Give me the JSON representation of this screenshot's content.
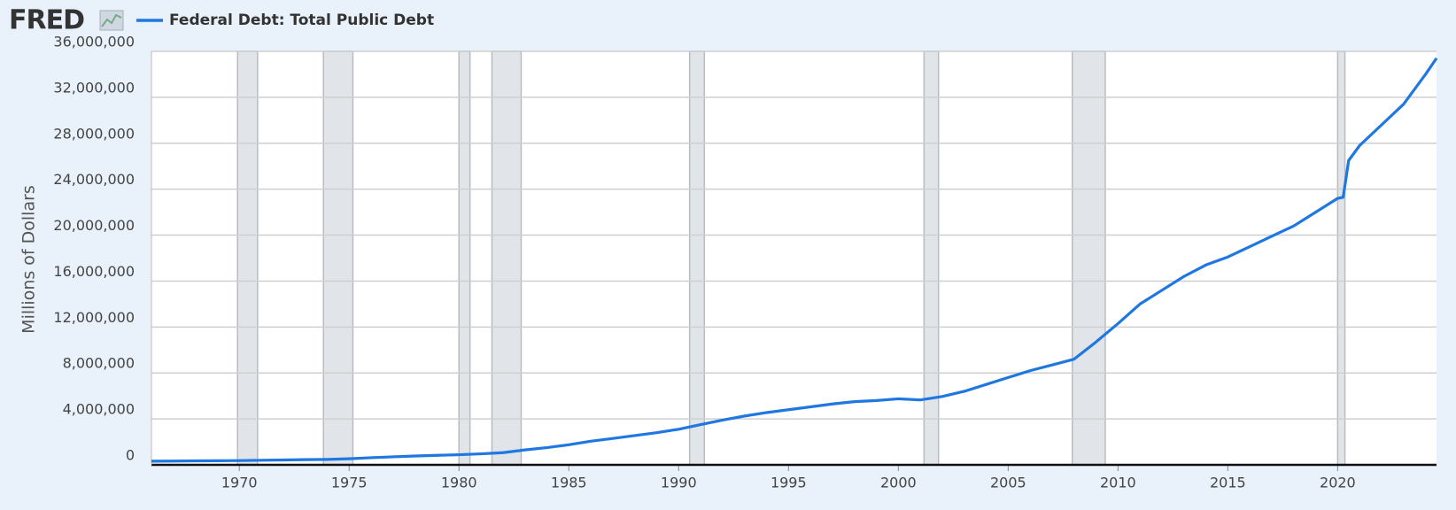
{
  "brand": "FRED",
  "chart_data": {
    "type": "line",
    "y_label": "Millions of Dollars",
    "x": [
      1966,
      1967,
      1968,
      1969,
      1970,
      1971,
      1972,
      1973,
      1974,
      1975,
      1976,
      1977,
      1978,
      1979,
      1980,
      1981,
      1982,
      1983,
      1984,
      1985,
      1986,
      1987,
      1988,
      1989,
      1990,
      1991,
      1992,
      1993,
      1994,
      1995,
      1996,
      1997,
      1998,
      1999,
      2000,
      2001,
      2002,
      2003,
      2004,
      2005,
      2006,
      2007,
      2008,
      2009,
      2010,
      2011,
      2012,
      2013,
      2014,
      2015,
      2016,
      2017,
      2018,
      2019,
      2020,
      2020.25,
      2020.5,
      2021,
      2022,
      2023,
      2024,
      2024.5
    ],
    "series": [
      {
        "name": "Federal Debt: Total Public Debt",
        "color": "#1f77e0",
        "values": [
          320000,
          330000,
          345000,
          355000,
          370000,
          400000,
          425000,
          455000,
          475000,
          530000,
          620000,
          700000,
          770000,
          830000,
          880000,
          960000,
          1060000,
          1300000,
          1500000,
          1750000,
          2060000,
          2300000,
          2550000,
          2800000,
          3100000,
          3500000,
          3900000,
          4250000,
          4550000,
          4800000,
          5050000,
          5300000,
          5500000,
          5600000,
          5750000,
          5650000,
          5950000,
          6400000,
          7000000,
          7600000,
          8200000,
          8700000,
          9200000,
          10700000,
          12300000,
          14000000,
          15200000,
          16400000,
          17400000,
          18100000,
          19000000,
          19900000,
          20800000,
          22000000,
          23200000,
          23300000,
          26500000,
          27800000,
          29600000,
          31400000,
          34000000,
          35400000
        ]
      }
    ],
    "recessions": [
      [
        1969.92,
        1970.83
      ],
      [
        1973.83,
        1975.17
      ],
      [
        1980.0,
        1980.5
      ],
      [
        1981.5,
        1982.83
      ],
      [
        1990.5,
        1991.17
      ],
      [
        2001.17,
        2001.83
      ],
      [
        2007.92,
        2009.42
      ],
      [
        2020.0,
        2020.33
      ]
    ],
    "xlim": [
      1966,
      2024.5
    ],
    "xticks": [
      1970,
      1975,
      1980,
      1985,
      1990,
      1995,
      2000,
      2005,
      2010,
      2015,
      2020
    ],
    "ylim": [
      0,
      36000000
    ],
    "yticks": [
      0,
      {
        "value": 4000000,
        "label": "4,000,000"
      },
      {
        "value": 8000000,
        "label": "8,000,000"
      },
      {
        "value": 12000000,
        "label": "12,000,000"
      },
      {
        "value": 16000000,
        "label": "16,000,000"
      },
      {
        "value": 20000000,
        "label": "20,000,000"
      },
      {
        "value": 24000000,
        "label": "24,000,000"
      },
      {
        "value": 28000000,
        "label": "28,000,000"
      },
      {
        "value": 32000000,
        "label": "32,000,000"
      },
      {
        "value": 36000000,
        "label": "36,000,000"
      }
    ],
    "grid": true
  }
}
